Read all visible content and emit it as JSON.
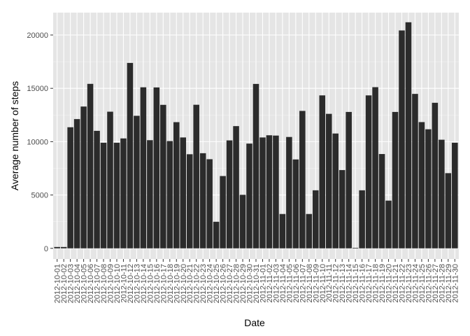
{
  "chart_data": {
    "type": "bar",
    "xlabel": "Date",
    "ylabel": "Average number of steps",
    "ylim": [
      -1000,
      22100
    ],
    "yticks": [
      0,
      5000,
      10000,
      15000,
      20000
    ],
    "grid": true,
    "colors": {
      "panel": "#e5e5e5",
      "grid_major": "#ffffff",
      "grid_minor": "#f2f2f2",
      "bar": "#2b2b2b",
      "text": "#4d4d4d"
    },
    "categories": [
      "2012-10-01",
      "2012-10-02",
      "2012-10-03",
      "2012-10-04",
      "2012-10-05",
      "2012-10-06",
      "2012-10-07",
      "2012-10-08",
      "2012-10-09",
      "2012-10-10",
      "2012-10-11",
      "2012-10-12",
      "2012-10-13",
      "2012-10-14",
      "2012-10-15",
      "2012-10-16",
      "2012-10-17",
      "2012-10-18",
      "2012-10-19",
      "2012-10-20",
      "2012-10-21",
      "2012-10-22",
      "2012-10-23",
      "2012-10-24",
      "2012-10-25",
      "2012-10-26",
      "2012-10-27",
      "2012-10-28",
      "2012-10-29",
      "2012-10-30",
      "2012-10-31",
      "2012-11-01",
      "2012-11-02",
      "2012-11-03",
      "2012-11-04",
      "2012-11-05",
      "2012-11-06",
      "2012-11-07",
      "2012-11-08",
      "2012-11-09",
      "2012-11-10",
      "2012-11-11",
      "2012-11-12",
      "2012-11-13",
      "2012-11-14",
      "2012-11-15",
      "2012-11-16",
      "2012-11-17",
      "2012-11-18",
      "2012-11-19",
      "2012-11-20",
      "2012-11-21",
      "2012-11-22",
      "2012-11-23",
      "2012-11-24",
      "2012-11-25",
      "2012-11-26",
      "2012-11-27",
      "2012-11-28",
      "2012-11-29",
      "2012-11-30"
    ],
    "values": [
      126,
      126,
      11352,
      12116,
      13294,
      15420,
      11015,
      9900,
      12811,
      9900,
      10304,
      17382,
      12426,
      15098,
      10139,
      15084,
      13452,
      10056,
      11829,
      10395,
      8821,
      13460,
      8918,
      8355,
      2492,
      6778,
      10119,
      11458,
      5018,
      9819,
      15414,
      10395,
      10600,
      10571,
      3219,
      10439,
      8334,
      12883,
      3219,
      5441,
      14339,
      12608,
      10765,
      7336,
      12787,
      41,
      5441,
      14339,
      15110,
      8841,
      4472,
      12787,
      20427,
      21194,
      14478,
      11834,
      11162,
      13646,
      10183,
      7047,
      9900
    ]
  }
}
